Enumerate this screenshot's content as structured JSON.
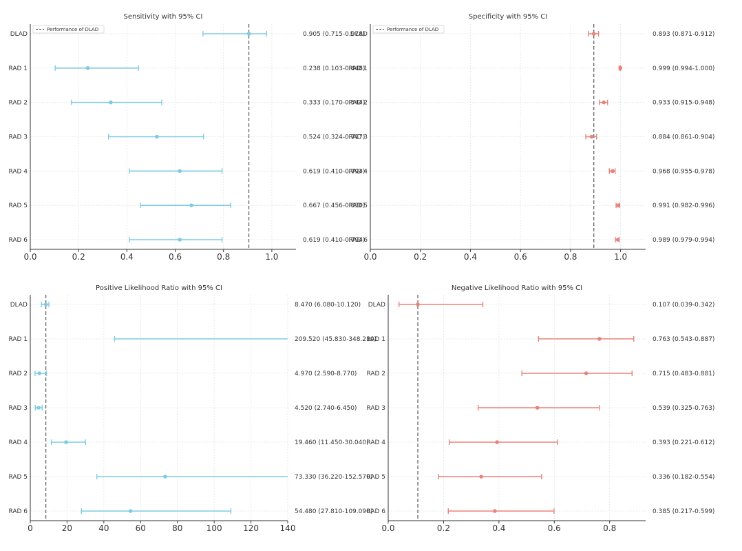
{
  "chart_data": [
    {
      "type": "forest",
      "title": "Sensitivity with 95% CI",
      "color": "#7ecbe3",
      "refline_color": "#555555",
      "legend": "Performance of DLAD",
      "legend_position": "top-left",
      "grid": true,
      "categories": [
        "DLAD",
        "RAD 1",
        "RAD 2",
        "RAD 3",
        "RAD 4",
        "RAD 5",
        "RAD 6"
      ],
      "values": [
        0.905,
        0.238,
        0.333,
        0.524,
        0.619,
        0.667,
        0.619
      ],
      "ci_low": [
        0.715,
        0.103,
        0.17,
        0.324,
        0.41,
        0.456,
        0.41
      ],
      "ci_high": [
        0.978,
        0.448,
        0.544,
        0.717,
        0.794,
        0.83,
        0.794
      ],
      "labels": [
        "0.905 (0.715-0.978)",
        "0.238 (0.103-0.448)",
        "0.333 (0.170-0.544)",
        "0.524 (0.324-0.717)",
        "0.619 (0.410-0.794)",
        "0.667 (0.456-0.830)",
        "0.619 (0.410-0.794)"
      ],
      "reference": 0.905,
      "xlim": [
        0,
        1.1
      ],
      "xticks": [
        0.0,
        0.2,
        0.4,
        0.6,
        0.8,
        1.0
      ],
      "xtick_labels": [
        "0.0",
        "0.2",
        "0.4",
        "0.6",
        "0.8",
        "1.0"
      ]
    },
    {
      "type": "forest",
      "title": "Specificity with 95% CI",
      "color": "#e8837a",
      "refline_color": "#555555",
      "legend": "Performance of DLAD",
      "legend_position": "top-left",
      "grid": true,
      "categories": [
        "DLAD",
        "RAD 1",
        "RAD 2",
        "RAD 3",
        "RAD 4",
        "RAD 5",
        "RAD 6"
      ],
      "values": [
        0.893,
        0.999,
        0.933,
        0.884,
        0.968,
        0.991,
        0.989
      ],
      "ci_low": [
        0.871,
        0.994,
        0.915,
        0.861,
        0.955,
        0.982,
        0.979
      ],
      "ci_high": [
        0.912,
        1.0,
        0.948,
        0.904,
        0.978,
        0.996,
        0.994
      ],
      "labels": [
        "0.893 (0.871-0.912)",
        "0.999 (0.994-1.000)",
        "0.933 (0.915-0.948)",
        "0.884 (0.861-0.904)",
        "0.968 (0.955-0.978)",
        "0.991 (0.982-0.996)",
        "0.989 (0.979-0.994)"
      ],
      "reference": 0.893,
      "xlim": [
        0,
        1.1
      ],
      "xticks": [
        0.0,
        0.2,
        0.4,
        0.6,
        0.8,
        1.0
      ],
      "xtick_labels": [
        "0.0",
        "0.2",
        "0.4",
        "0.6",
        "0.8",
        "1.0"
      ]
    },
    {
      "type": "forest",
      "title": "Positive Likelihood Ratio with 95% CI",
      "color": "#7ecbe3",
      "refline_color": "#555555",
      "grid": true,
      "categories": [
        "DLAD",
        "RAD 1",
        "RAD 2",
        "RAD 3",
        "RAD 4",
        "RAD 5",
        "RAD 6"
      ],
      "values": [
        8.47,
        209.52,
        4.97,
        4.52,
        19.46,
        73.33,
        54.48
      ],
      "ci_low": [
        6.08,
        45.83,
        2.59,
        2.74,
        11.45,
        36.22,
        27.81
      ],
      "ci_high": [
        10.12,
        348.21,
        8.77,
        6.45,
        30.04,
        152.57,
        109.09
      ],
      "labels": [
        "8.470 (6.080-10.120)",
        "209.520 (45.830-348.210)",
        "4.970 (2.590-8.770)",
        "4.520 (2.740-6.450)",
        "19.460 (11.450-30.040)",
        "73.330 (36.220-152.570)",
        "54.480 (27.810-109.090)"
      ],
      "reference": 8.47,
      "xlim": [
        0,
        140
      ],
      "xticks": [
        0,
        20,
        40,
        60,
        80,
        100,
        120,
        140
      ],
      "xtick_labels": [
        "0",
        "20",
        "40",
        "60",
        "80",
        "100",
        "120",
        "140"
      ]
    },
    {
      "type": "forest",
      "title": "Negative Likelihood Ratio with 95% CI",
      "color": "#e8837a",
      "refline_color": "#555555",
      "grid": true,
      "categories": [
        "DLAD",
        "RAD 1",
        "RAD 2",
        "RAD 3",
        "RAD 4",
        "RAD 5",
        "RAD 6"
      ],
      "values": [
        0.107,
        0.763,
        0.715,
        0.539,
        0.393,
        0.336,
        0.385
      ],
      "ci_low": [
        0.039,
        0.543,
        0.483,
        0.325,
        0.221,
        0.182,
        0.217
      ],
      "ci_high": [
        0.342,
        0.887,
        0.881,
        0.763,
        0.612,
        0.554,
        0.599
      ],
      "labels": [
        "0.107 (0.039-0.342)",
        "0.763 (0.543-0.887)",
        "0.715 (0.483-0.881)",
        "0.539 (0.325-0.763)",
        "0.393 (0.221-0.612)",
        "0.336 (0.182-0.554)",
        "0.385 (0.217-0.599)"
      ],
      "reference": 0.107,
      "xlim": [
        0,
        0.93
      ],
      "xticks": [
        0.0,
        0.2,
        0.4,
        0.6,
        0.8
      ],
      "xtick_labels": [
        "0.0",
        "0.2",
        "0.4",
        "0.6",
        "0.8"
      ]
    }
  ]
}
